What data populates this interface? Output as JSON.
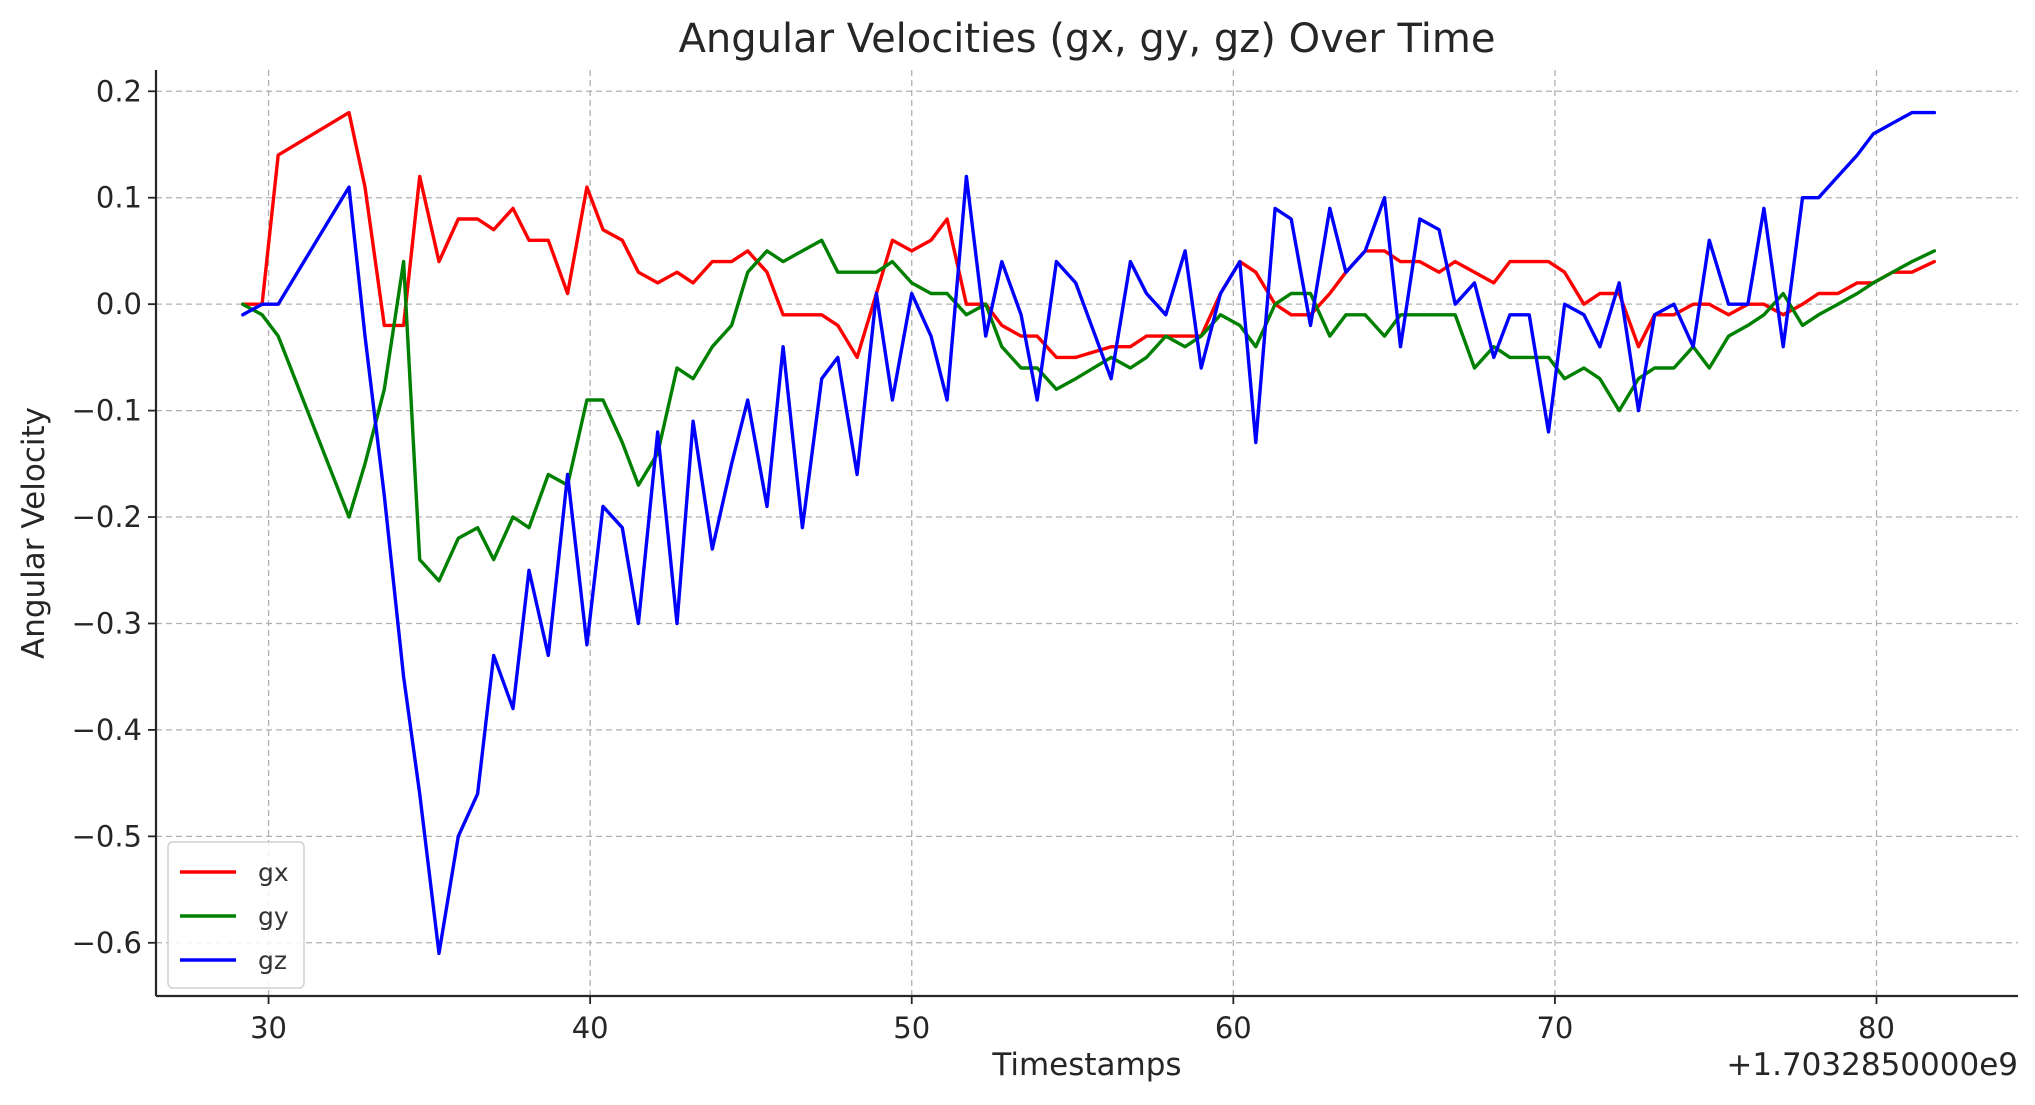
{
  "chart_data": {
    "type": "line",
    "title": "Angular Velocities (gx, gy, gz) Over Time",
    "xlabel": "Timestamps",
    "ylabel": "Angular Velocity",
    "x_offset_label": "+1.7032850000e9",
    "xlim": [
      26.5,
      84.4
    ],
    "ylim": [
      -0.65,
      0.22
    ],
    "xticks": [
      30,
      40,
      50,
      60,
      70,
      80
    ],
    "xtick_labels": [
      "30",
      "40",
      "50",
      "60",
      "70",
      "80"
    ],
    "yticks": [
      0.2,
      0.1,
      0.0,
      -0.1,
      -0.2,
      -0.3,
      -0.4,
      -0.5,
      -0.6
    ],
    "ytick_labels": [
      "0.2",
      "0.1",
      "0.0",
      "−0.1",
      "−0.2",
      "−0.3",
      "−0.4",
      "−0.5",
      "−0.6"
    ],
    "grid": true,
    "legend_position": "bottom-left",
    "series": [
      {
        "name": "gx",
        "color": "#ff0000",
        "x": [
          29.2,
          29.8,
          30.3,
          32.5,
          33.0,
          33.6,
          34.2,
          34.7,
          35.3,
          35.9,
          36.5,
          37.0,
          37.6,
          38.1,
          38.7,
          39.3,
          39.9,
          40.4,
          41.0,
          41.5,
          42.1,
          42.7,
          43.2,
          43.8,
          44.4,
          44.9,
          45.5,
          46.0,
          46.6,
          47.2,
          47.7,
          48.3,
          48.9,
          49.4,
          50.0,
          50.6,
          51.1,
          51.7,
          52.3,
          52.8,
          53.4,
          53.9,
          54.5,
          55.1,
          56.2,
          56.8,
          57.3,
          57.9,
          58.5,
          59.0,
          59.6,
          60.2,
          60.7,
          61.3,
          61.8,
          62.4,
          63.0,
          63.5,
          64.1,
          64.7,
          65.2,
          65.8,
          66.4,
          66.9,
          67.5,
          68.1,
          68.6,
          69.2,
          69.8,
          70.3,
          70.9,
          71.4,
          72.0,
          72.6,
          73.1,
          73.7,
          74.3,
          74.8,
          75.4,
          76.0,
          76.5,
          77.1,
          77.7,
          78.2,
          78.8,
          79.4,
          79.9,
          80.5,
          81.1,
          81.8
        ],
        "y": [
          0.0,
          0.0,
          0.14,
          0.18,
          0.11,
          -0.02,
          -0.02,
          0.12,
          0.04,
          0.08,
          0.08,
          0.07,
          0.09,
          0.06,
          0.06,
          0.01,
          0.11,
          0.07,
          0.06,
          0.03,
          0.02,
          0.03,
          0.02,
          0.04,
          0.04,
          0.05,
          0.03,
          -0.01,
          -0.01,
          -0.01,
          -0.02,
          -0.05,
          0.01,
          0.06,
          0.05,
          0.06,
          0.08,
          0.0,
          0.0,
          -0.02,
          -0.03,
          -0.03,
          -0.05,
          -0.05,
          -0.04,
          -0.04,
          -0.03,
          -0.03,
          -0.03,
          -0.03,
          0.01,
          0.04,
          0.03,
          0.0,
          -0.01,
          -0.01,
          0.01,
          0.03,
          0.05,
          0.05,
          0.04,
          0.04,
          0.03,
          0.04,
          0.03,
          0.02,
          0.04,
          0.04,
          0.04,
          0.03,
          0.0,
          0.01,
          0.01,
          -0.04,
          -0.01,
          -0.01,
          0.0,
          0.0,
          -0.01,
          0.0,
          0.0,
          -0.01,
          0.0,
          0.01,
          0.01,
          0.02,
          0.02,
          0.03,
          0.03,
          0.04
        ]
      },
      {
        "name": "gy",
        "color": "#008000",
        "x": [
          29.2,
          29.8,
          30.3,
          32.5,
          33.0,
          33.6,
          34.2,
          34.7,
          35.3,
          35.9,
          36.5,
          37.0,
          37.6,
          38.1,
          38.7,
          39.3,
          39.9,
          40.4,
          41.0,
          41.5,
          42.1,
          42.7,
          43.2,
          43.8,
          44.4,
          44.9,
          45.5,
          46.0,
          46.6,
          47.2,
          47.7,
          48.3,
          48.9,
          49.4,
          50.0,
          50.6,
          51.1,
          51.7,
          52.3,
          52.8,
          53.4,
          53.9,
          54.5,
          55.1,
          56.2,
          56.8,
          57.3,
          57.9,
          58.5,
          59.0,
          59.6,
          60.2,
          60.7,
          61.3,
          61.8,
          62.4,
          63.0,
          63.5,
          64.1,
          64.7,
          65.2,
          65.8,
          66.4,
          66.9,
          67.5,
          68.1,
          68.6,
          69.2,
          69.8,
          70.3,
          70.9,
          71.4,
          72.0,
          72.6,
          73.1,
          73.7,
          74.3,
          74.8,
          75.4,
          76.0,
          76.5,
          77.1,
          77.7,
          78.2,
          78.8,
          79.4,
          79.9,
          80.5,
          81.1,
          81.8
        ],
        "y": [
          0.0,
          -0.01,
          -0.03,
          -0.2,
          -0.15,
          -0.08,
          0.04,
          -0.24,
          -0.26,
          -0.22,
          -0.21,
          -0.24,
          -0.2,
          -0.21,
          -0.16,
          -0.17,
          -0.09,
          -0.09,
          -0.13,
          -0.17,
          -0.14,
          -0.06,
          -0.07,
          -0.04,
          -0.02,
          0.03,
          0.05,
          0.04,
          0.05,
          0.06,
          0.03,
          0.03,
          0.03,
          0.04,
          0.02,
          0.01,
          0.01,
          -0.01,
          0.0,
          -0.04,
          -0.06,
          -0.06,
          -0.08,
          -0.07,
          -0.05,
          -0.06,
          -0.05,
          -0.03,
          -0.04,
          -0.03,
          -0.01,
          -0.02,
          -0.04,
          0.0,
          0.01,
          0.01,
          -0.03,
          -0.01,
          -0.01,
          -0.03,
          -0.01,
          -0.01,
          -0.01,
          -0.01,
          -0.06,
          -0.04,
          -0.05,
          -0.05,
          -0.05,
          -0.07,
          -0.06,
          -0.07,
          -0.1,
          -0.07,
          -0.06,
          -0.06,
          -0.04,
          -0.06,
          -0.03,
          -0.02,
          -0.01,
          0.01,
          -0.02,
          -0.01,
          0.0,
          0.01,
          0.02,
          0.03,
          0.04,
          0.05
        ]
      },
      {
        "name": "gz",
        "color": "#0000ff",
        "x": [
          29.2,
          29.8,
          30.3,
          32.5,
          33.0,
          33.6,
          34.2,
          34.7,
          35.3,
          35.9,
          36.5,
          37.0,
          37.6,
          38.1,
          38.7,
          39.3,
          39.9,
          40.4,
          41.0,
          41.5,
          42.1,
          42.7,
          43.2,
          43.8,
          44.4,
          44.9,
          45.5,
          46.0,
          46.6,
          47.2,
          47.7,
          48.3,
          48.9,
          49.4,
          50.0,
          50.6,
          51.1,
          51.7,
          52.3,
          52.8,
          53.4,
          53.9,
          54.5,
          55.1,
          56.2,
          56.8,
          57.3,
          57.9,
          58.5,
          59.0,
          59.6,
          60.2,
          60.7,
          61.3,
          61.8,
          62.4,
          63.0,
          63.5,
          64.1,
          64.7,
          65.2,
          65.8,
          66.4,
          66.9,
          67.5,
          68.1,
          68.6,
          69.2,
          69.8,
          70.3,
          70.9,
          71.4,
          72.0,
          72.6,
          73.1,
          73.7,
          74.3,
          74.8,
          75.4,
          76.0,
          76.5,
          77.1,
          77.7,
          78.2,
          78.8,
          79.4,
          79.9,
          80.5,
          81.1,
          81.8
        ],
        "y": [
          -0.01,
          0.0,
          0.0,
          0.11,
          -0.03,
          -0.18,
          -0.35,
          -0.46,
          -0.61,
          -0.5,
          -0.46,
          -0.33,
          -0.38,
          -0.25,
          -0.33,
          -0.16,
          -0.32,
          -0.19,
          -0.21,
          -0.3,
          -0.12,
          -0.3,
          -0.11,
          -0.23,
          -0.15,
          -0.09,
          -0.19,
          -0.04,
          -0.21,
          -0.07,
          -0.05,
          -0.16,
          0.01,
          -0.09,
          0.01,
          -0.03,
          -0.09,
          0.12,
          -0.03,
          0.04,
          -0.01,
          -0.09,
          0.04,
          0.02,
          -0.07,
          0.04,
          0.01,
          -0.01,
          0.05,
          -0.06,
          0.01,
          0.04,
          -0.13,
          0.09,
          0.08,
          -0.02,
          0.09,
          0.03,
          0.05,
          0.1,
          -0.04,
          0.08,
          0.07,
          0.0,
          0.02,
          -0.05,
          -0.01,
          -0.01,
          -0.12,
          0.0,
          -0.01,
          -0.04,
          0.02,
          -0.1,
          -0.01,
          0.0,
          -0.04,
          0.06,
          0.0,
          0.0,
          0.09,
          -0.04,
          0.1,
          0.1,
          0.12,
          0.14,
          0.16,
          0.17,
          0.18,
          0.18
        ]
      }
    ]
  }
}
